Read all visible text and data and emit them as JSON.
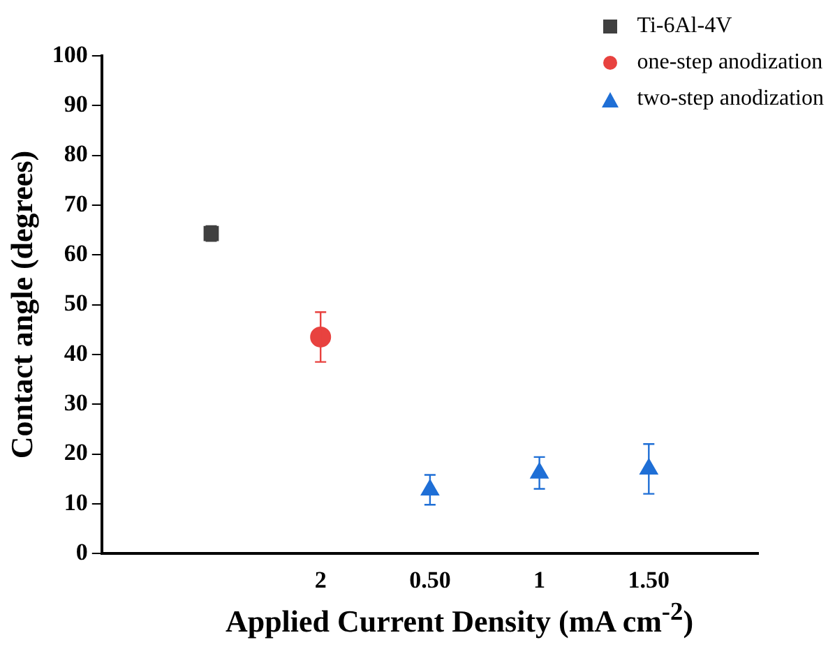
{
  "chart_data": {
    "type": "scatter",
    "categories": [
      null,
      "2",
      "0.50",
      "1",
      "1.50"
    ],
    "xlabel": "Applied Current Density (mA cm$^{-2}$)",
    "ylabel": "Contact angle (degrees)",
    "ylim": [
      0,
      100
    ],
    "yticks": [
      0,
      10,
      20,
      30,
      40,
      50,
      60,
      70,
      80,
      90,
      100
    ],
    "grid": false,
    "legend": "top right",
    "series": [
      {
        "name": "Ti-6Al-4V",
        "color": "#404040",
        "marker": "square",
        "values": [
          64.3,
          null,
          null,
          null,
          null
        ],
        "errors": [
          1.5,
          null,
          null,
          null,
          null
        ]
      },
      {
        "name": "one-step anodization",
        "color": "#e8423f",
        "marker": "circle",
        "values": [
          null,
          43.5,
          null,
          null,
          null
        ],
        "errors": [
          null,
          5,
          null,
          null,
          null
        ]
      },
      {
        "name": "two-step anodization",
        "color": "#1f6fd6",
        "marker": "triangle",
        "values": [
          null,
          null,
          12.8,
          16.2,
          17
        ],
        "errors": [
          null,
          null,
          3,
          3.2,
          5
        ]
      }
    ]
  }
}
